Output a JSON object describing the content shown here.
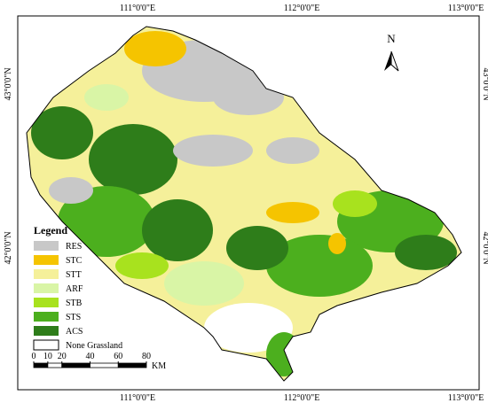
{
  "map": {
    "longitude_labels": [
      "111°0'0\"E",
      "112°0'0\"E",
      "113°0'0\"E"
    ],
    "latitude_labels": [
      "43°0'0\"N",
      "42°0'0\"N"
    ],
    "north_label": "N",
    "legend": {
      "title": "Legend",
      "items": [
        {
          "label": "RES",
          "color": "#c8c8c8"
        },
        {
          "label": "STC",
          "color": "#f5c400"
        },
        {
          "label": "STT",
          "color": "#f5f09a"
        },
        {
          "label": "ARF",
          "color": "#d9f5a6"
        },
        {
          "label": "STB",
          "color": "#a8e21e"
        },
        {
          "label": "STS",
          "color": "#4caf1e"
        },
        {
          "label": "ACS",
          "color": "#2e7d1a"
        },
        {
          "label": "None Grassland",
          "color": "#ffffff"
        }
      ]
    },
    "scale_bar": {
      "ticks": [
        0,
        10,
        20,
        40,
        60,
        80
      ],
      "unit": "KM"
    }
  }
}
